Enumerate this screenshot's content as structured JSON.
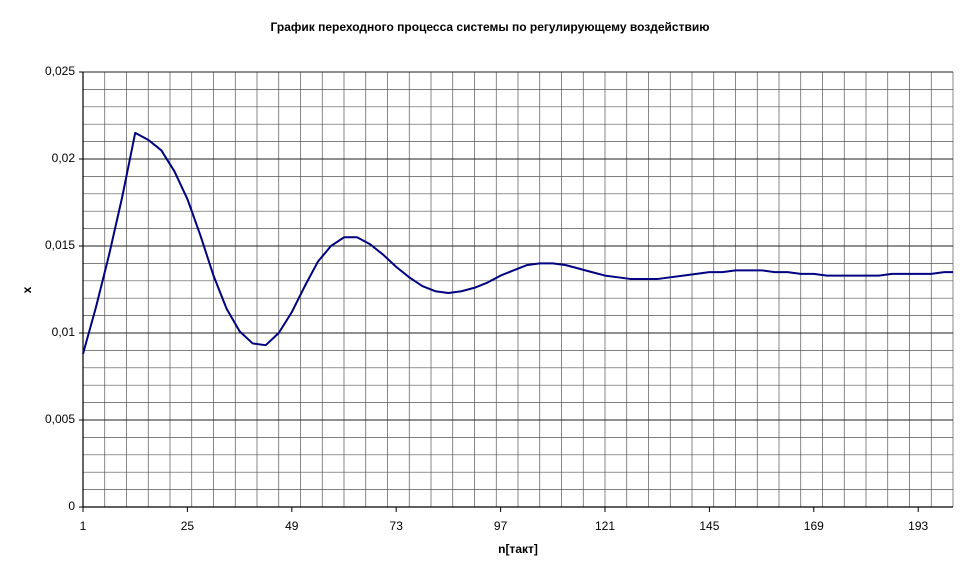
{
  "chart_data": {
    "type": "line",
    "title": "График переходного процесса системы по регулирующему воздействию",
    "x_label": "n[такт]",
    "y_label": "x",
    "x": [
      1,
      4,
      7,
      10,
      13,
      16,
      19,
      22,
      25,
      28,
      31,
      34,
      37,
      40,
      43,
      46,
      49,
      52,
      55,
      58,
      61,
      64,
      67,
      70,
      73,
      76,
      79,
      82,
      85,
      88,
      91,
      94,
      97,
      100,
      103,
      106,
      109,
      112,
      115,
      118,
      121,
      124,
      127,
      130,
      133,
      136,
      139,
      142,
      145,
      148,
      151,
      154,
      157,
      160,
      163,
      166,
      169,
      172,
      175,
      178,
      181,
      184,
      187,
      190,
      193,
      196,
      199,
      201
    ],
    "series": [
      {
        "name": "x",
        "color": "#000080",
        "values": [
          0.0088,
          0.0115,
          0.0145,
          0.0178,
          0.0215,
          0.0211,
          0.0205,
          0.0193,
          0.0177,
          0.0156,
          0.0133,
          0.0114,
          0.0101,
          0.0094,
          0.0093,
          0.01,
          0.0112,
          0.0127,
          0.0141,
          0.015,
          0.0155,
          0.0155,
          0.0151,
          0.0145,
          0.0138,
          0.0132,
          0.0127,
          0.0124,
          0.0123,
          0.0124,
          0.0126,
          0.0129,
          0.0133,
          0.0136,
          0.0139,
          0.014,
          0.014,
          0.0139,
          0.0137,
          0.0135,
          0.0133,
          0.0132,
          0.0131,
          0.0131,
          0.0131,
          0.0132,
          0.0133,
          0.0134,
          0.0135,
          0.0135,
          0.0136,
          0.0136,
          0.0136,
          0.0135,
          0.0135,
          0.0134,
          0.0134,
          0.0133,
          0.0133,
          0.0133,
          0.0133,
          0.0133,
          0.0134,
          0.0134,
          0.0134,
          0.0134,
          0.0135,
          0.0135
        ]
      }
    ],
    "xlim": [
      1,
      201
    ],
    "xticks": [
      1,
      25,
      49,
      73,
      97,
      121,
      145,
      169,
      193
    ],
    "xminor": 5,
    "ylim": [
      0,
      0.025
    ],
    "yticks": [
      0,
      {
        "value": 0.005,
        "label": "0,005"
      },
      {
        "value": 0.01,
        "label": "0,01"
      },
      {
        "value": 0.015,
        "label": "0,015"
      },
      {
        "value": 0.02,
        "label": "0,02"
      },
      {
        "value": 0.025,
        "label": "0,025"
      }
    ],
    "yminor": 0.001,
    "grid": true,
    "legend": false
  }
}
